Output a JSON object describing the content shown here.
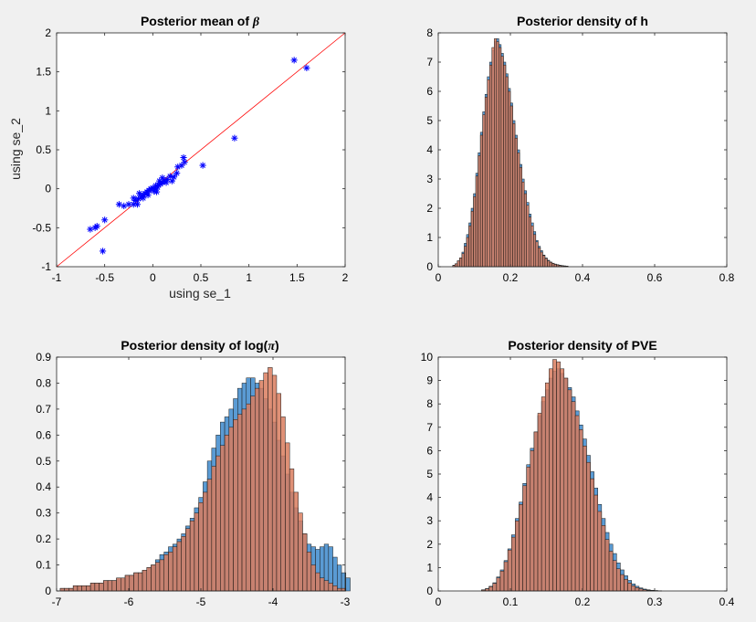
{
  "chart_data": [
    {
      "type": "scatter",
      "title_prefix": "Posterior mean of ",
      "title_symbol": "β",
      "xlabel": "using se_1",
      "ylabel": "using se_2",
      "xlim": [
        -1,
        2
      ],
      "ylim": [
        -1,
        2
      ],
      "xticks": [
        "-1",
        "-0.5",
        "0",
        "0.5",
        "1",
        "1.5",
        "2"
      ],
      "yticks": [
        "-1",
        "-0.5",
        "0",
        "0.5",
        "1",
        "1.5",
        "2"
      ],
      "marker_color": "#0000ff",
      "line_color": "#ff0000",
      "reference_line": {
        "x": [
          -1,
          2
        ],
        "y": [
          -1,
          2
        ]
      },
      "points": [
        [
          1.47,
          1.65
        ],
        [
          1.6,
          1.55
        ],
        [
          0.85,
          0.65
        ],
        [
          0.52,
          0.3
        ],
        [
          0.32,
          0.4
        ],
        [
          0.33,
          0.34
        ],
        [
          0.3,
          0.3
        ],
        [
          0.25,
          0.2
        ],
        [
          0.22,
          0.15
        ],
        [
          0.2,
          0.1
        ],
        [
          0.15,
          0.12
        ],
        [
          0.12,
          0.1
        ],
        [
          0.1,
          0.08
        ],
        [
          0.08,
          0.06
        ],
        [
          0.06,
          0.05
        ],
        [
          0.05,
          0.02
        ],
        [
          0.03,
          0.04
        ],
        [
          0.02,
          0.0
        ],
        [
          0.0,
          0.01
        ],
        [
          -0.02,
          0.0
        ],
        [
          -0.04,
          -0.02
        ],
        [
          -0.06,
          -0.04
        ],
        [
          -0.08,
          -0.06
        ],
        [
          -0.1,
          -0.08
        ],
        [
          -0.12,
          -0.1
        ],
        [
          -0.15,
          -0.13
        ],
        [
          -0.18,
          -0.15
        ],
        [
          -0.2,
          -0.2
        ],
        [
          -0.25,
          -0.2
        ],
        [
          -0.3,
          -0.22
        ],
        [
          -0.35,
          -0.2
        ],
        [
          -0.14,
          -0.06
        ],
        [
          -0.1,
          -0.12
        ],
        [
          0.04,
          -0.04
        ],
        [
          0.07,
          0.1
        ],
        [
          0.1,
          0.14
        ],
        [
          0.14,
          0.08
        ],
        [
          0.18,
          0.16
        ],
        [
          0.26,
          0.28
        ],
        [
          -0.05,
          -0.08
        ],
        [
          0.01,
          -0.03
        ],
        [
          -0.2,
          -0.12
        ],
        [
          -0.16,
          -0.2
        ],
        [
          -0.5,
          -0.4
        ],
        [
          -0.58,
          -0.48
        ],
        [
          -0.6,
          -0.5
        ],
        [
          -0.65,
          -0.52
        ],
        [
          -0.52,
          -0.8
        ]
      ]
    },
    {
      "type": "bar",
      "title": "Posterior density of h",
      "xlim": [
        0,
        0.8
      ],
      "ylim": [
        0,
        8
      ],
      "xticks": [
        "0",
        "0.2",
        "0.4",
        "0.6",
        "0.8"
      ],
      "yticks": [
        "0",
        "1",
        "2",
        "3",
        "4",
        "5",
        "6",
        "7",
        "8"
      ],
      "bin_start": 0.04,
      "bin_width": 0.0064,
      "series": [
        {
          "name": "se_1",
          "color": "#5a9bd4",
          "values": [
            0.05,
            0.1,
            0.2,
            0.3,
            0.5,
            0.8,
            1.1,
            1.5,
            2.0,
            2.5,
            3.2,
            3.9,
            4.6,
            5.3,
            5.9,
            6.5,
            7.0,
            7.4,
            7.7,
            7.8,
            7.6,
            7.3,
            7.0,
            6.6,
            6.1,
            5.6,
            5.0,
            4.5,
            4.0,
            3.5,
            3.0,
            2.6,
            2.2,
            1.8,
            1.5,
            1.2,
            0.9,
            0.7,
            0.55,
            0.4,
            0.3,
            0.22,
            0.16,
            0.12,
            0.09,
            0.07,
            0.05,
            0.04,
            0.03,
            0.02
          ]
        },
        {
          "name": "se_2",
          "color": "#d97c5e",
          "values": [
            0.04,
            0.1,
            0.2,
            0.3,
            0.45,
            0.7,
            1.0,
            1.4,
            1.9,
            2.4,
            3.1,
            3.8,
            4.5,
            5.2,
            5.8,
            6.4,
            6.9,
            7.5,
            7.8,
            7.7,
            7.5,
            7.2,
            6.9,
            6.5,
            6.0,
            5.5,
            4.9,
            4.4,
            3.9,
            3.4,
            2.9,
            2.5,
            2.1,
            1.7,
            1.4,
            1.1,
            0.85,
            0.65,
            0.5,
            0.38,
            0.28,
            0.2,
            0.15,
            0.11,
            0.08,
            0.06,
            0.04,
            0.03,
            0.02,
            0.02
          ]
        }
      ]
    },
    {
      "type": "bar",
      "title_prefix": "Posterior density of log(",
      "title_symbol": "π",
      "title_suffix": ")",
      "xlim": [
        -7,
        -3
      ],
      "ylim": [
        0,
        0.9
      ],
      "xticks": [
        "-7",
        "-6",
        "-5",
        "-4",
        "-3"
      ],
      "yticks": [
        "0",
        "0.1",
        "0.2",
        "0.3",
        "0.4",
        "0.5",
        "0.6",
        "0.7",
        "0.8",
        "0.9"
      ],
      "bin_start": -6.95,
      "bin_width": 0.06,
      "series": [
        {
          "name": "se_1",
          "color": "#5a9bd4",
          "values": [
            0.01,
            0.01,
            0.01,
            0.02,
            0.02,
            0.02,
            0.02,
            0.03,
            0.03,
            0.03,
            0.04,
            0.04,
            0.04,
            0.05,
            0.05,
            0.06,
            0.06,
            0.07,
            0.07,
            0.08,
            0.09,
            0.1,
            0.12,
            0.14,
            0.15,
            0.17,
            0.18,
            0.2,
            0.22,
            0.25,
            0.28,
            0.32,
            0.36,
            0.42,
            0.5,
            0.55,
            0.6,
            0.65,
            0.67,
            0.7,
            0.74,
            0.78,
            0.8,
            0.82,
            0.82,
            0.8,
            0.78,
            0.74,
            0.7,
            0.65,
            0.58,
            0.52,
            0.45,
            0.38,
            0.32,
            0.27,
            0.22,
            0.18,
            0.17,
            0.16,
            0.17,
            0.18,
            0.17,
            0.13,
            0.1,
            0.07,
            0.05
          ]
        },
        {
          "name": "se_2",
          "color": "#d97c5e",
          "values": [
            0.01,
            0.01,
            0.01,
            0.02,
            0.02,
            0.02,
            0.02,
            0.03,
            0.03,
            0.03,
            0.04,
            0.04,
            0.04,
            0.05,
            0.05,
            0.06,
            0.06,
            0.07,
            0.07,
            0.08,
            0.09,
            0.1,
            0.11,
            0.12,
            0.14,
            0.15,
            0.17,
            0.19,
            0.21,
            0.24,
            0.27,
            0.3,
            0.34,
            0.38,
            0.43,
            0.48,
            0.52,
            0.56,
            0.6,
            0.63,
            0.66,
            0.68,
            0.7,
            0.72,
            0.75,
            0.78,
            0.81,
            0.84,
            0.86,
            0.83,
            0.76,
            0.67,
            0.57,
            0.47,
            0.38,
            0.3,
            0.22,
            0.15,
            0.1,
            0.07,
            0.05,
            0.04,
            0.03,
            0.02,
            0.01,
            0.01,
            0.0
          ]
        }
      ]
    },
    {
      "type": "bar",
      "title": "Posterior density of PVE",
      "xlim": [
        0,
        0.4
      ],
      "ylim": [
        0,
        10
      ],
      "xticks": [
        "0",
        "0.1",
        "0.2",
        "0.3",
        "0.4"
      ],
      "yticks": [
        "0",
        "1",
        "2",
        "3",
        "4",
        "5",
        "6",
        "7",
        "8",
        "9",
        "10"
      ],
      "bin_start": 0.06,
      "bin_width": 0.0052,
      "series": [
        {
          "name": "se_1",
          "color": "#5a9bd4",
          "values": [
            0.05,
            0.1,
            0.2,
            0.35,
            0.6,
            0.9,
            1.3,
            1.8,
            2.4,
            3.1,
            3.8,
            4.6,
            5.4,
            6.1,
            6.8,
            7.5,
            8.1,
            8.6,
            9.1,
            9.4,
            9.5,
            9.3,
            9.1,
            8.7,
            8.3,
            7.7,
            7.1,
            6.5,
            5.8,
            5.1,
            4.4,
            3.7,
            3.1,
            2.5,
            2.0,
            1.6,
            1.2,
            0.9,
            0.65,
            0.45,
            0.3,
            0.2,
            0.13,
            0.08,
            0.05,
            0.03,
            0.02,
            0.01
          ]
        },
        {
          "name": "se_2",
          "color": "#d97c5e",
          "values": [
            0.04,
            0.09,
            0.18,
            0.32,
            0.56,
            0.85,
            1.25,
            1.75,
            2.3,
            3.0,
            3.7,
            4.5,
            5.3,
            6.0,
            6.8,
            7.6,
            8.3,
            8.9,
            9.5,
            9.9,
            9.8,
            9.5,
            9.1,
            8.6,
            8.1,
            7.5,
            6.9,
            6.2,
            5.5,
            4.8,
            4.1,
            3.4,
            2.8,
            2.2,
            1.7,
            1.3,
            0.95,
            0.7,
            0.5,
            0.34,
            0.22,
            0.14,
            0.09,
            0.05,
            0.03,
            0.02,
            0.01,
            0.01
          ]
        }
      ]
    }
  ]
}
